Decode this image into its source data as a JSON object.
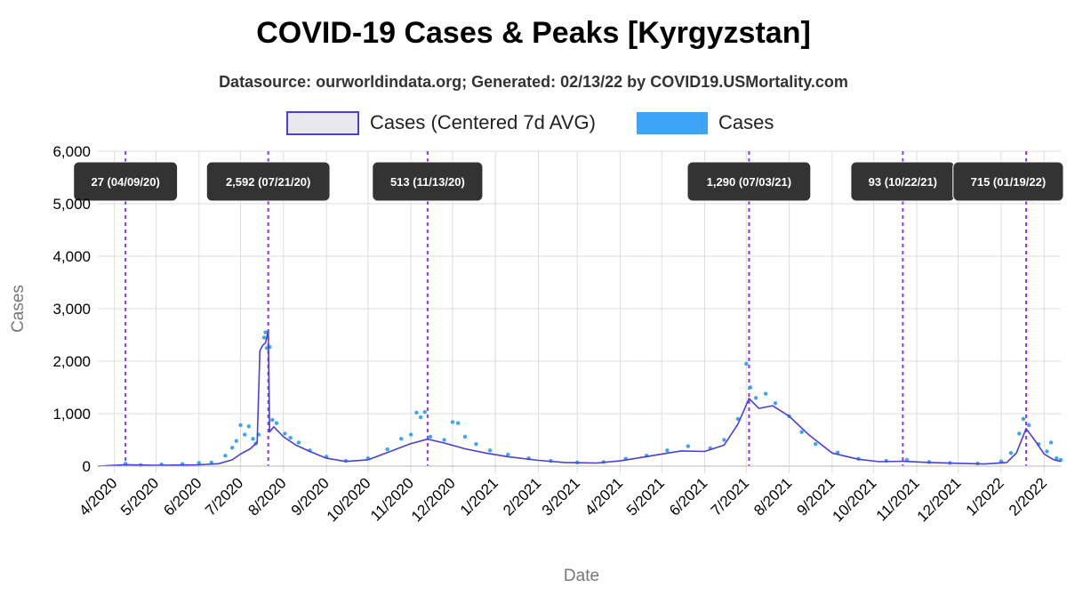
{
  "chart_data": {
    "type": "line",
    "title": "COVID-19 Cases & Peaks [Kyrgyzstan]",
    "subtitle": "Datasource: ourworldindata.org; Generated: 02/13/22 by COVID19.USMortality.com",
    "xlabel": "Date",
    "ylabel": "Cases",
    "ylim": [
      0,
      6000
    ],
    "yticks": [
      0,
      1000,
      2000,
      3000,
      4000,
      5000,
      6000
    ],
    "ytick_labels": [
      "0",
      "1,000",
      "2,000",
      "3,000",
      "4,000",
      "5,000",
      "6,000"
    ],
    "xlim": [
      "2020-03-20",
      "2022-02-13"
    ],
    "xticks": [
      "2020-04-01",
      "2020-05-01",
      "2020-06-01",
      "2020-07-01",
      "2020-08-01",
      "2020-09-01",
      "2020-10-01",
      "2020-11-01",
      "2020-12-01",
      "2021-01-01",
      "2021-02-01",
      "2021-03-01",
      "2021-04-01",
      "2021-05-01",
      "2021-06-01",
      "2021-07-01",
      "2021-08-01",
      "2021-09-01",
      "2021-10-01",
      "2021-11-01",
      "2021-12-01",
      "2022-01-01",
      "2022-02-01"
    ],
    "xtick_labels": [
      "4/2020",
      "5/2020",
      "6/2020",
      "7/2020",
      "8/2020",
      "9/2020",
      "10/2020",
      "11/2020",
      "12/2020",
      "1/2021",
      "2/2021",
      "3/2021",
      "4/2021",
      "5/2021",
      "6/2021",
      "7/2021",
      "8/2021",
      "9/2021",
      "10/2021",
      "11/2021",
      "12/2021",
      "1/2022",
      "2/2022"
    ],
    "grid": true,
    "legend_position": "top",
    "series": [
      {
        "name": "Cases (Centered 7d AVG)",
        "kind": "line",
        "color": "#4a3fd9",
        "points": [
          [
            "2020-03-20",
            0
          ],
          [
            "2020-04-09",
            27
          ],
          [
            "2020-05-01",
            15
          ],
          [
            "2020-05-15",
            20
          ],
          [
            "2020-06-01",
            25
          ],
          [
            "2020-06-15",
            45
          ],
          [
            "2020-06-25",
            120
          ],
          [
            "2020-07-01",
            230
          ],
          [
            "2020-07-08",
            330
          ],
          [
            "2020-07-13",
            450
          ],
          [
            "2020-07-15",
            2200
          ],
          [
            "2020-07-17",
            2300
          ],
          [
            "2020-07-19",
            2350
          ],
          [
            "2020-07-21",
            2592
          ],
          [
            "2020-07-22",
            650
          ],
          [
            "2020-07-25",
            750
          ],
          [
            "2020-08-01",
            560
          ],
          [
            "2020-08-10",
            400
          ],
          [
            "2020-08-20",
            280
          ],
          [
            "2020-09-01",
            150
          ],
          [
            "2020-09-15",
            90
          ],
          [
            "2020-10-01",
            120
          ],
          [
            "2020-10-15",
            260
          ],
          [
            "2020-11-01",
            430
          ],
          [
            "2020-11-13",
            513
          ],
          [
            "2020-11-25",
            440
          ],
          [
            "2020-12-10",
            330
          ],
          [
            "2020-12-25",
            250
          ],
          [
            "2021-01-10",
            180
          ],
          [
            "2021-02-01",
            110
          ],
          [
            "2021-02-20",
            70
          ],
          [
            "2021-03-15",
            60
          ],
          [
            "2021-04-01",
            100
          ],
          [
            "2021-04-15",
            160
          ],
          [
            "2021-05-01",
            230
          ],
          [
            "2021-05-15",
            290
          ],
          [
            "2021-06-01",
            280
          ],
          [
            "2021-06-15",
            400
          ],
          [
            "2021-06-25",
            800
          ],
          [
            "2021-07-03",
            1290
          ],
          [
            "2021-07-10",
            1100
          ],
          [
            "2021-07-20",
            1150
          ],
          [
            "2021-08-01",
            950
          ],
          [
            "2021-08-15",
            600
          ],
          [
            "2021-09-01",
            250
          ],
          [
            "2021-09-20",
            130
          ],
          [
            "2021-10-05",
            85
          ],
          [
            "2021-10-22",
            93
          ],
          [
            "2021-11-10",
            70
          ],
          [
            "2021-12-01",
            55
          ],
          [
            "2021-12-20",
            40
          ],
          [
            "2022-01-05",
            70
          ],
          [
            "2022-01-12",
            250
          ],
          [
            "2022-01-19",
            715
          ],
          [
            "2022-01-25",
            500
          ],
          [
            "2022-02-01",
            230
          ],
          [
            "2022-02-08",
            120
          ],
          [
            "2022-02-13",
            90
          ]
        ]
      },
      {
        "name": "Cases",
        "kind": "scatter",
        "color": "#3da5f5",
        "points": [
          [
            "2020-04-09",
            45
          ],
          [
            "2020-04-20",
            20
          ],
          [
            "2020-05-05",
            30
          ],
          [
            "2020-05-20",
            40
          ],
          [
            "2020-06-01",
            60
          ],
          [
            "2020-06-10",
            70
          ],
          [
            "2020-06-20",
            200
          ],
          [
            "2020-06-25",
            350
          ],
          [
            "2020-06-28",
            480
          ],
          [
            "2020-07-01",
            780
          ],
          [
            "2020-07-04",
            600
          ],
          [
            "2020-07-07",
            760
          ],
          [
            "2020-07-10",
            520
          ],
          [
            "2020-07-12",
            430
          ],
          [
            "2020-07-14",
            600
          ],
          [
            "2020-07-18",
            2450
          ],
          [
            "2020-07-19",
            2550
          ],
          [
            "2020-07-20",
            2250
          ],
          [
            "2020-07-22",
            2270
          ],
          [
            "2020-07-24",
            880
          ],
          [
            "2020-07-27",
            820
          ],
          [
            "2020-08-02",
            620
          ],
          [
            "2020-08-06",
            540
          ],
          [
            "2020-08-12",
            450
          ],
          [
            "2020-08-20",
            300
          ],
          [
            "2020-09-01",
            180
          ],
          [
            "2020-09-15",
            100
          ],
          [
            "2020-10-01",
            150
          ],
          [
            "2020-10-15",
            320
          ],
          [
            "2020-10-25",
            520
          ],
          [
            "2020-11-01",
            600
          ],
          [
            "2020-11-05",
            1020
          ],
          [
            "2020-11-08",
            930
          ],
          [
            "2020-11-11",
            1030
          ],
          [
            "2020-11-15",
            560
          ],
          [
            "2020-11-25",
            500
          ],
          [
            "2020-12-01",
            840
          ],
          [
            "2020-12-05",
            820
          ],
          [
            "2020-12-10",
            560
          ],
          [
            "2020-12-18",
            420
          ],
          [
            "2020-12-28",
            300
          ],
          [
            "2021-01-10",
            220
          ],
          [
            "2021-01-25",
            150
          ],
          [
            "2021-02-10",
            100
          ],
          [
            "2021-03-01",
            70
          ],
          [
            "2021-03-20",
            80
          ],
          [
            "2021-04-05",
            140
          ],
          [
            "2021-04-20",
            200
          ],
          [
            "2021-05-05",
            300
          ],
          [
            "2021-05-20",
            380
          ],
          [
            "2021-06-05",
            340
          ],
          [
            "2021-06-15",
            500
          ],
          [
            "2021-06-25",
            900
          ],
          [
            "2021-07-01",
            1950
          ],
          [
            "2021-07-04",
            1500
          ],
          [
            "2021-07-08",
            1300
          ],
          [
            "2021-07-15",
            1380
          ],
          [
            "2021-07-22",
            1200
          ],
          [
            "2021-08-01",
            950
          ],
          [
            "2021-08-10",
            650
          ],
          [
            "2021-08-20",
            420
          ],
          [
            "2021-09-05",
            260
          ],
          [
            "2021-09-20",
            140
          ],
          [
            "2021-10-10",
            100
          ],
          [
            "2021-10-25",
            120
          ],
          [
            "2021-11-10",
            80
          ],
          [
            "2021-11-25",
            60
          ],
          [
            "2021-12-15",
            50
          ],
          [
            "2022-01-01",
            90
          ],
          [
            "2022-01-08",
            250
          ],
          [
            "2022-01-14",
            620
          ],
          [
            "2022-01-17",
            900
          ],
          [
            "2022-01-21",
            780
          ],
          [
            "2022-01-28",
            420
          ],
          [
            "2022-02-03",
            280
          ],
          [
            "2022-02-06",
            450
          ],
          [
            "2022-02-10",
            150
          ],
          [
            "2022-02-13",
            120
          ]
        ]
      }
    ],
    "peaks": [
      {
        "date": "2020-04-09",
        "label": "27 (04/09/20)"
      },
      {
        "date": "2020-07-21",
        "label": "2,592 (07/21/20)"
      },
      {
        "date": "2020-11-13",
        "label": "513 (11/13/20)"
      },
      {
        "date": "2021-07-03",
        "label": "1,290 (07/03/21)"
      },
      {
        "date": "2021-10-22",
        "label": "93 (10/22/21)"
      },
      {
        "date": "2022-01-19",
        "label": "715 (01/19/22)"
      }
    ],
    "colors": {
      "avg_line": "#4a3fd9",
      "avg_legend_fill": "#e8e8ee",
      "cases": "#3da5f5",
      "peak_line": "#9b30ff",
      "annotation_bg": "#333333",
      "grid": "#dddddd"
    }
  }
}
